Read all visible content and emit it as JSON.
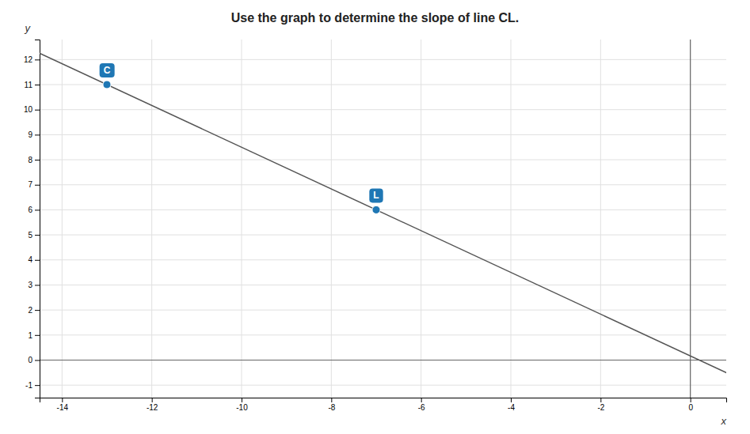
{
  "chart_data": {
    "type": "scatter",
    "title": "Use the graph to determine the slope of line CL.",
    "x_label": "x",
    "y_label": "y",
    "x": [
      -13,
      -7
    ],
    "values": [
      11,
      6
    ],
    "labels": [
      "C",
      "L"
    ],
    "marker": "circle",
    "line_style": "solid",
    "xlim": [
      -14.5,
      0.8
    ],
    "ylim": [
      -1.5,
      12.8
    ],
    "xticks": [
      -14,
      -12,
      -10,
      -8,
      -6,
      -4,
      -2,
      0
    ],
    "yticks": [
      -1,
      0,
      1,
      2,
      3,
      4,
      5,
      6,
      7,
      8,
      9,
      10,
      11,
      12
    ],
    "grid": true
  }
}
